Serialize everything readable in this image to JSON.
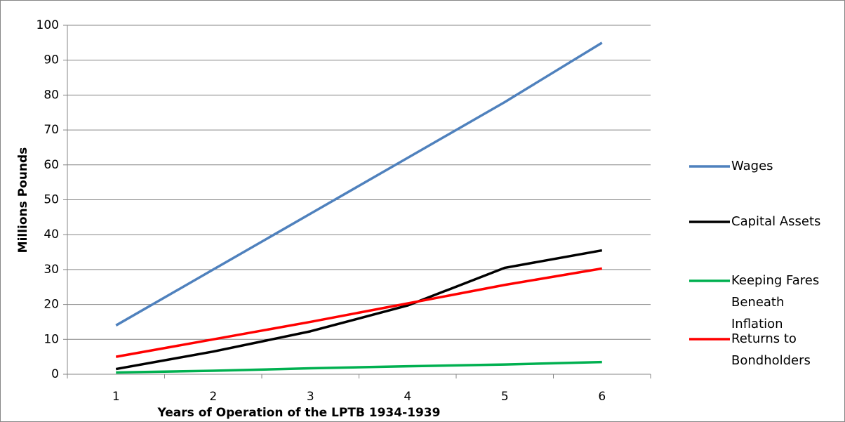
{
  "chart_data": {
    "type": "line",
    "x_label": "Years of Operation of the LPTB 1934-1939",
    "y_label": "Millions Pounds",
    "categories": [
      1,
      2,
      3,
      4,
      5,
      6
    ],
    "series": [
      {
        "name": "Wages",
        "color": "#4f81bd",
        "values": [
          14,
          30,
          46,
          62,
          78,
          95
        ]
      },
      {
        "name": "Capital Assets",
        "color": "#000000",
        "values": [
          1.5,
          6.5,
          12.3,
          19.7,
          30.5,
          35.5
        ]
      },
      {
        "name": "Keeping Fares Beneath Inflation",
        "color": "#00b050",
        "values": [
          0.5,
          1,
          1.7,
          2.3,
          2.8,
          3.5
        ]
      },
      {
        "name": "Returns to Bondholders",
        "color": "#ff0000",
        "values": [
          5,
          10,
          15,
          20.3,
          25.6,
          30.3
        ]
      }
    ],
    "ylim": [
      0,
      100
    ],
    "yticks": [
      0,
      10,
      20,
      30,
      40,
      50,
      60,
      70,
      80,
      90,
      100
    ],
    "grid": true,
    "legend": "right"
  }
}
